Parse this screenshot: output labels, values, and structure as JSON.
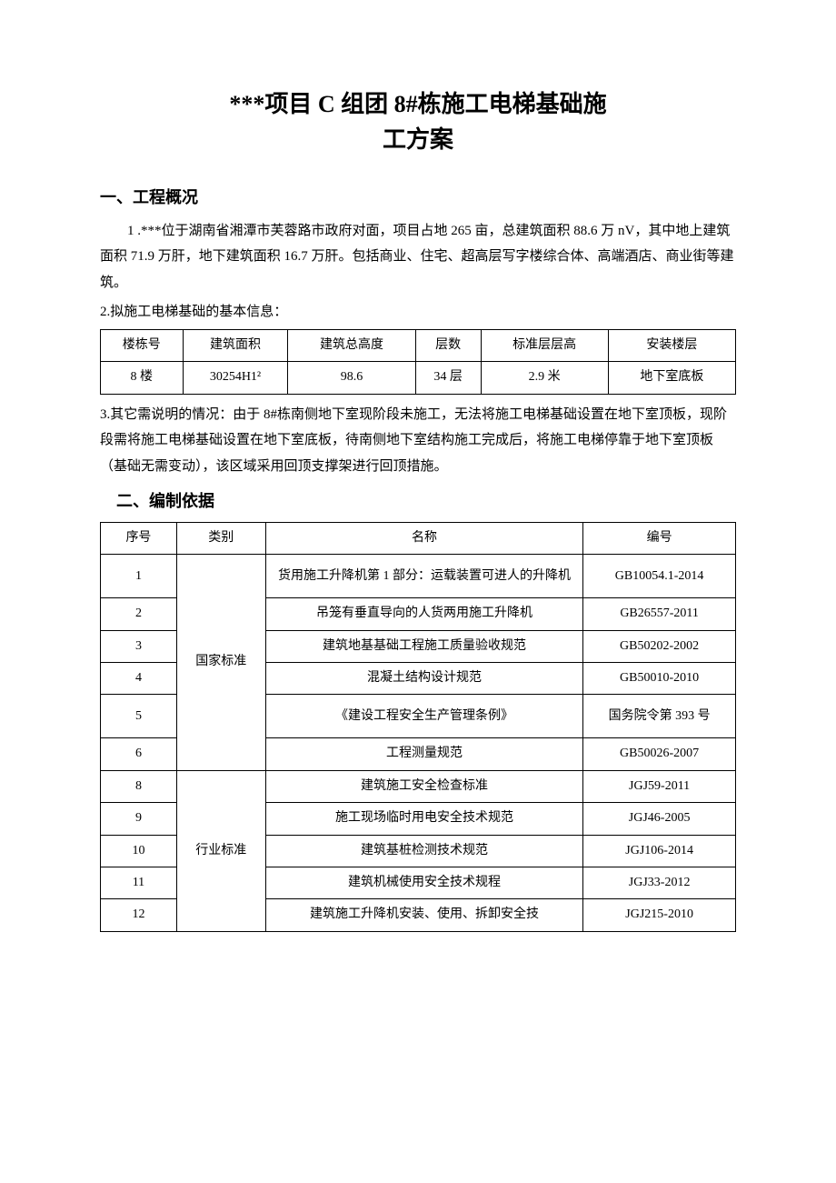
{
  "title_line1": "***项目 C 组团 8#栋施工电梯基础施",
  "title_line2": "工方案",
  "section1_heading": "一、工程概况",
  "section1_para1": "1 .***位于湖南省湘潭市芙蓉路市政府对面，项目占地 265 亩，总建筑面积 88.6 万 nV，其中地上建筑面积 71.9 万肝，地下建筑面积 16.7 万肝。包括商业、住宅、超高层写字楼综合体、高端酒店、商业街等建筑。",
  "section1_para2": "2.拟施工电梯基础的基本信息：",
  "table1_headers": [
    "楼栋号",
    "建筑面积",
    "建筑总高度",
    "层数",
    "标准层层高",
    "安装楼层"
  ],
  "table1_row": [
    "8 楼",
    "30254H1²",
    "98.6",
    "34 层",
    "2.9 米",
    "地下室底板"
  ],
  "section1_para3": "3.其它需说明的情况：由于 8#栋南侧地下室现阶段未施工，无法将施工电梯基础设置在地下室顶板，现阶段需将施工电梯基础设置在地下室底板，待南侧地下室结构施工完成后，将施工电梯停靠于地下室顶板（基础无需变动），该区域采用回顶支撑架进行回顶措施。",
  "section2_heading": "二、编制依据",
  "table2_headers": [
    "序号",
    "类别",
    "名称",
    "编号"
  ],
  "table2_rows": [
    {
      "seq": "1",
      "cat": "国家标准",
      "name": "货用施工升降机第 1 部分：运载装置可进人的升降机",
      "code": "GB10054.1-2014",
      "tall": true
    },
    {
      "seq": "2",
      "name": "吊笼有垂直导向的人货两用施工升降机",
      "code": "GB26557-2011"
    },
    {
      "seq": "3",
      "name": "建筑地基基础工程施工质量验收规范",
      "code": "GB50202-2002"
    },
    {
      "seq": "4",
      "name": "混凝土结构设计规范",
      "code": "GB50010-2010"
    },
    {
      "seq": "5",
      "name": "《建设工程安全生产管理条例》",
      "code": "国务院令第 393 号",
      "tall": true
    },
    {
      "seq": "6",
      "name": "工程测量规范",
      "code": "GB50026-2007"
    },
    {
      "seq": "8",
      "cat": "行业标准",
      "name": "建筑施工安全检查标准",
      "code": "JGJ59-2011"
    },
    {
      "seq": "9",
      "name": "施工现场临时用电安全技术规范",
      "code": "JGJ46-2005"
    },
    {
      "seq": "10",
      "name": "建筑基桩检测技术规范",
      "code": "JGJ106-2014"
    },
    {
      "seq": "11",
      "name": "建筑机械使用安全技术规程",
      "code": "JGJ33-2012"
    },
    {
      "seq": "12",
      "name": "建筑施工升降机安装、使用、拆卸安全技",
      "code": "JGJ215-2010"
    }
  ],
  "table2_col_widths": [
    "12%",
    "14%",
    "50%",
    "24%"
  ]
}
